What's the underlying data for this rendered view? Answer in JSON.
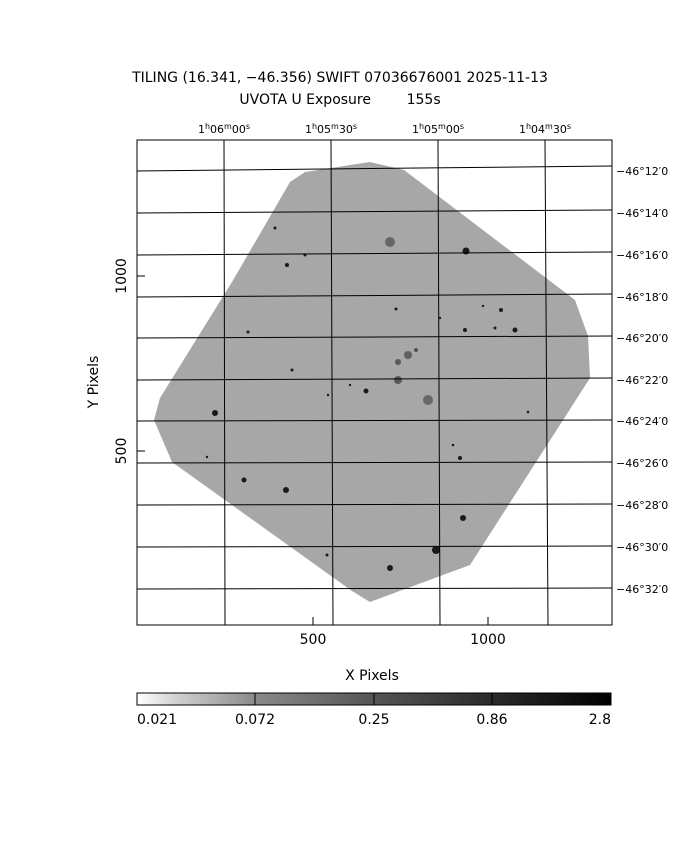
{
  "title_line1": "TILING (16.341, −46.356) SWIFT 07036676001 2025-11-13",
  "title_line2": "UVOTA U Exposure        155s",
  "axes": {
    "xlabel": "X Pixels",
    "ylabel": "Y Pixels",
    "x_ticks": [
      "500",
      "1000"
    ],
    "y_ticks": [
      "1000",
      "500"
    ],
    "ra_ticks": [
      {
        "h": "1",
        "m": "06",
        "s": "00"
      },
      {
        "h": "1",
        "m": "05",
        "s": "30"
      },
      {
        "h": "1",
        "m": "05",
        "s": "00"
      },
      {
        "h": "1",
        "m": "04",
        "s": "30"
      }
    ],
    "dec_ticks": [
      "−46°12′0",
      "−46°14′0",
      "−46°16′0",
      "−46°18′0",
      "−46°20′0",
      "−46°22′0",
      "−46°24′0",
      "−46°26′0",
      "−46°28′0",
      "−46°30′0",
      "−46°32′0"
    ]
  },
  "colorbar": {
    "labels": [
      "0.021",
      "0.072",
      "0.25",
      "0.86",
      "2.8"
    ]
  },
  "colors": {
    "background": "#ffffff",
    "image_gray": "#a8a8a8",
    "grid": "#000000"
  }
}
